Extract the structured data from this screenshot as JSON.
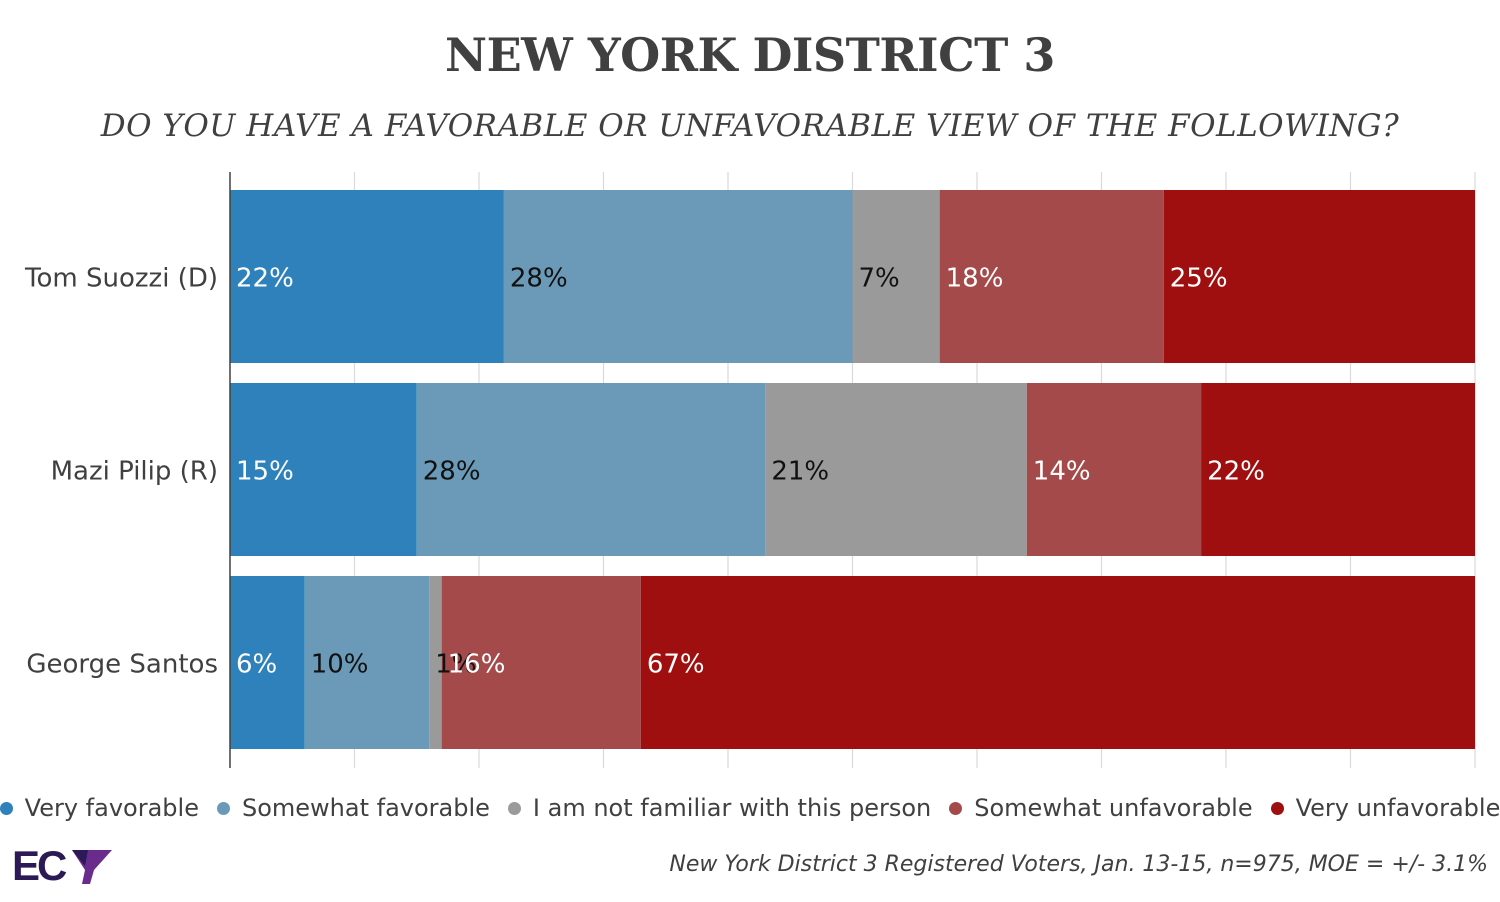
{
  "header": {
    "title": "NEW YORK DISTRICT 3",
    "subtitle": "DO YOU HAVE A FAVORABLE OR UNFAVORABLE VIEW OF THE FOLLOWING?"
  },
  "chart_data": {
    "type": "bar",
    "orientation": "horizontal",
    "stacked": true,
    "categories": [
      "Tom Suozzi (D)",
      "Mazi Pilip (R)",
      "George Santos"
    ],
    "series": [
      {
        "name": "Very favorable",
        "color": "#2e81ba",
        "label_color": "#ffffff",
        "values": [
          22,
          15,
          6
        ],
        "labels": [
          "22%",
          "15%",
          "6%"
        ]
      },
      {
        "name": "Somewhat favorable",
        "color": "#6b9ab8",
        "label_color": "#111111",
        "values": [
          28,
          28,
          10
        ],
        "labels": [
          "28%",
          "28%",
          "10%"
        ]
      },
      {
        "name": "I am not familiar with this person",
        "color": "#9a9a9a",
        "label_color": "#111111",
        "values": [
          7,
          21,
          1
        ],
        "labels": [
          "7%",
          "21%",
          "1%"
        ]
      },
      {
        "name": "Somewhat unfavorable",
        "color": "#a44a4a",
        "label_color": "#ffffff",
        "values": [
          18,
          14,
          16
        ],
        "labels": [
          "18%",
          "14%",
          "16%"
        ]
      },
      {
        "name": "Very unfavorable",
        "color": "#a00f0f",
        "label_color": "#ffffff",
        "values": [
          25,
          22,
          67
        ],
        "labels": [
          "25%",
          "22%",
          "67%"
        ]
      }
    ],
    "xlim": [
      0,
      100
    ],
    "grid": true,
    "legend_position": "bottom"
  },
  "footer": {
    "source": "New York District 3 Registered Voters, Jan. 13-15, n=975, MOE = +/- 3.1%",
    "logo_text": "ECP"
  }
}
